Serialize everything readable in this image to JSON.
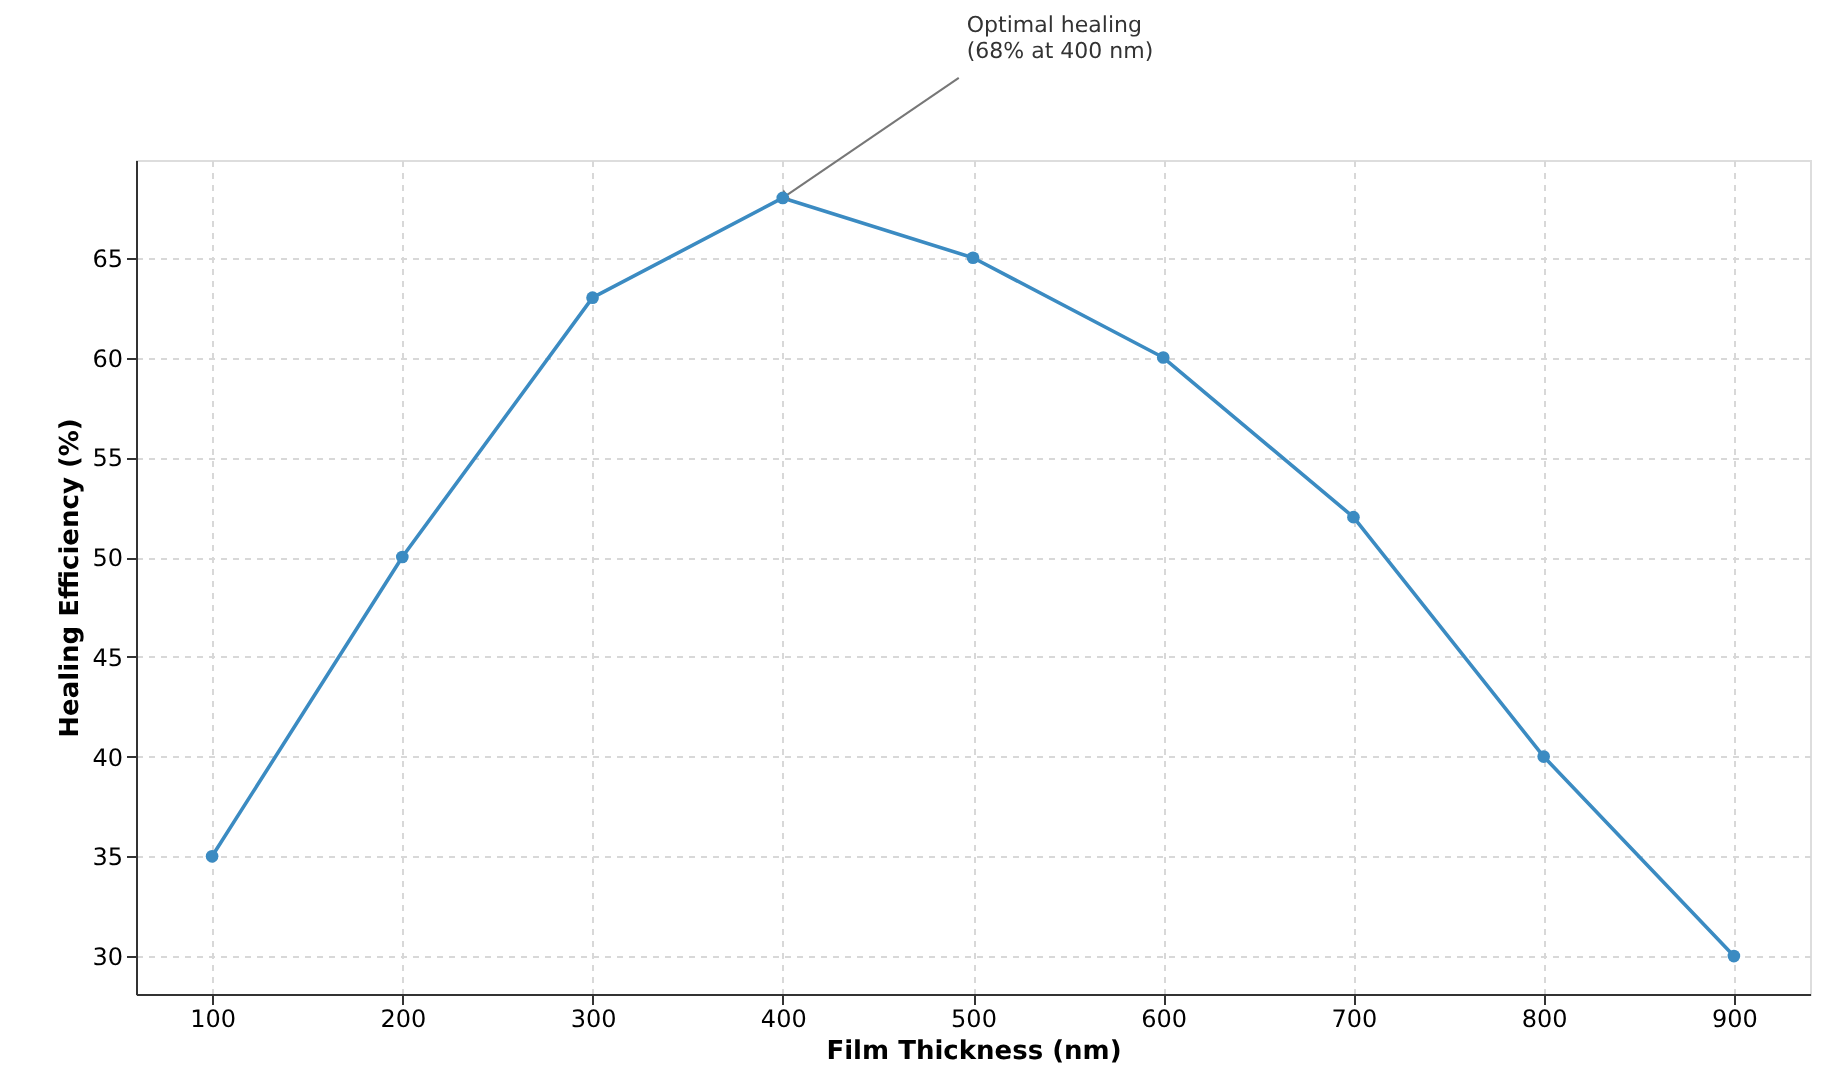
{
  "chart_data": {
    "type": "line",
    "xlabel": "Film Thickness (nm)",
    "ylabel": "Healing Efficiency (%)",
    "x": [
      100,
      200,
      300,
      400,
      500,
      600,
      700,
      800,
      900
    ],
    "series": [
      {
        "color": "#3b8bc2",
        "values": [
          35,
          50,
          63,
          68,
          65,
          60,
          52,
          40,
          30
        ]
      }
    ],
    "xlim": [
      60,
      940
    ],
    "xticks": [
      100,
      200,
      300,
      400,
      500,
      600,
      700,
      800,
      900
    ],
    "ylim": [
      28.1,
      69.9
    ],
    "yticks": [
      30,
      35,
      40,
      45,
      50,
      55,
      60,
      65
    ],
    "annotations": [
      {
        "text": "Optimal healing\n(68% at 400 nm)",
        "x": 400,
        "y": 68
      }
    ],
    "grid": true,
    "marker": "circle",
    "line_style": "solid"
  }
}
